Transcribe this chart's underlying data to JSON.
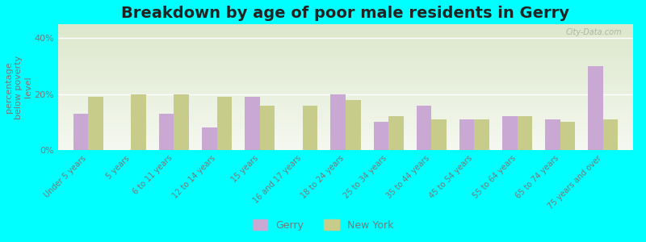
{
  "title": "Breakdown by age of poor male residents in Gerry",
  "ylabel": "percentage\nbelow poverty\nlevel",
  "categories": [
    "Under 5 years",
    "5 years",
    "6 to 11 years",
    "12 to 14 years",
    "15 years",
    "16 and 17 years",
    "18 to 24 years",
    "25 to 34 years",
    "35 to 44 years",
    "45 to 54 years",
    "55 to 64 years",
    "65 to 74 years",
    "75 years and over"
  ],
  "gerry_values": [
    13,
    0,
    13,
    8,
    19,
    0,
    20,
    10,
    16,
    11,
    12,
    11,
    30
  ],
  "ny_values": [
    19,
    20,
    20,
    19,
    16,
    16,
    18,
    12,
    11,
    11,
    12,
    10,
    11
  ],
  "gerry_color": "#c9a8d4",
  "ny_color": "#c8cc8a",
  "bg_color": "#00ffff",
  "plot_bg_grad_top": "#dce8cc",
  "plot_bg_grad_bottom": "#f5f8f0",
  "yticks": [
    0,
    20,
    40
  ],
  "ylim": [
    0,
    45
  ],
  "title_fontsize": 14,
  "label_fontsize": 7,
  "ylabel_fontsize": 8,
  "tick_color": "#777777",
  "watermark": "City-Data.com",
  "legend_fontsize": 9
}
